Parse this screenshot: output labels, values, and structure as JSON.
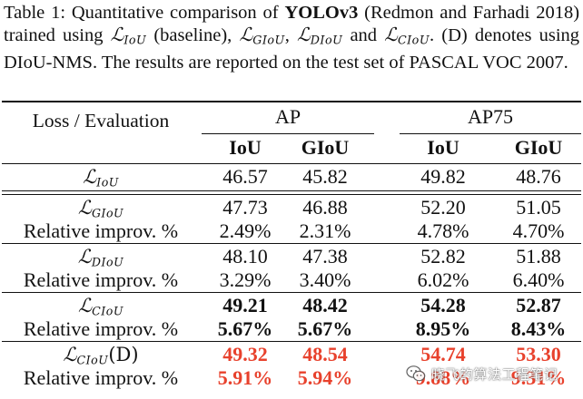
{
  "caption": {
    "table_label": "Table 1:",
    "text_before_model": "Quantitative comparison of",
    "model": "YOLOv3",
    "text_after_model": "(Redmon and Farhadi 2018) trained using",
    "loss_baseline_sub": "IoU",
    "text_baseline": "(baseline),",
    "loss_g_sub": "GIoU",
    "comma": ",",
    "loss_d_sub": "DIoU",
    "text_and": "and",
    "loss_c_sub": "CIoU",
    "text_end": ". (D) denotes using DIoU-NMS. The results are reported on the test set of PASCAL VOC 2007."
  },
  "table": {
    "corner_header": "Loss / Evaluation",
    "groups": [
      "AP",
      "AP75"
    ],
    "metrics": [
      "IoU",
      "GIoU",
      "IoU",
      "GIoU"
    ],
    "calligraphic_L": "ℒ",
    "rows": [
      {
        "loss_sub": "IoU",
        "suffix": "",
        "values": [
          "46.57",
          "45.82",
          "49.82",
          "48.76"
        ],
        "style": "normal"
      },
      {
        "loss_sub": "GIoU",
        "suffix": "",
        "values": [
          "47.73",
          "46.88",
          "52.20",
          "51.05"
        ],
        "style": "normal"
      },
      {
        "label": "Relative improv. %",
        "values": [
          "2.49%",
          "2.31%",
          "4.78%",
          "4.70%"
        ],
        "style": "normal"
      },
      {
        "loss_sub": "DIoU",
        "suffix": "",
        "values": [
          "48.10",
          "47.38",
          "52.82",
          "51.88"
        ],
        "style": "normal"
      },
      {
        "label": "Relative improv. %",
        "values": [
          "3.29%",
          "3.40%",
          "6.02%",
          "6.40%"
        ],
        "style": "normal"
      },
      {
        "loss_sub": "CIoU",
        "suffix": "",
        "values": [
          "49.21",
          "48.42",
          "54.28",
          "52.87"
        ],
        "style": "bold"
      },
      {
        "label": "Relative improv. %",
        "values": [
          "5.67%",
          "5.67%",
          "8.95%",
          "8.43%"
        ],
        "style": "bold"
      },
      {
        "loss_sub": "CIoU",
        "suffix": "(D)",
        "values": [
          "49.32",
          "48.54",
          "54.74",
          "53.30"
        ],
        "style": "red"
      },
      {
        "label": "Relative improv. %",
        "values": [
          "5.91%",
          "5.94%",
          "9.88%",
          "9.31%"
        ],
        "style": "red"
      }
    ]
  },
  "watermark": {
    "text": "晓飞的算法工程笔记",
    "icon": "wechat-icon"
  },
  "colors": {
    "highlight_red": "#e8412c",
    "text": "#111111"
  }
}
